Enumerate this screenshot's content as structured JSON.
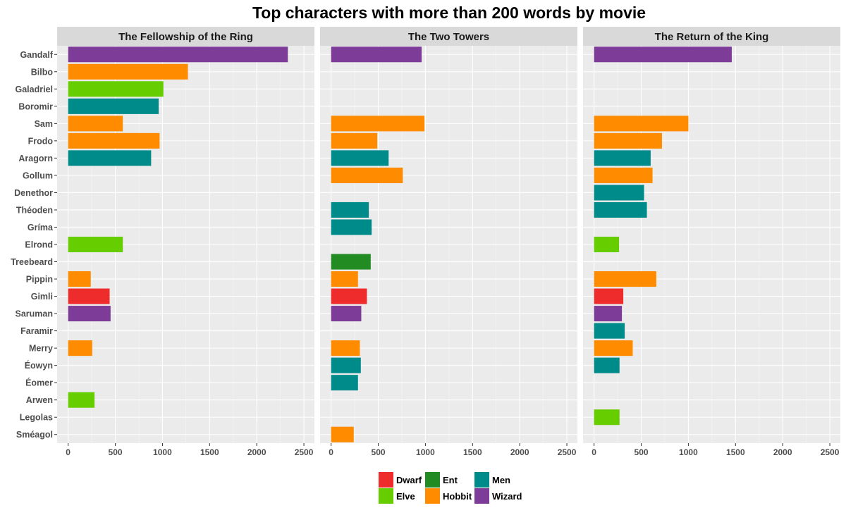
{
  "chart_data": {
    "type": "bar",
    "orientation": "horizontal",
    "title": "Top characters with more than 200 words by movie",
    "xlim": [
      0,
      2600
    ],
    "x_ticks": [
      0,
      500,
      1000,
      1500,
      2000,
      2500
    ],
    "grid": true,
    "legend_position": "bottom",
    "categories": [
      "Gandalf",
      "Bilbo",
      "Galadriel",
      "Boromir",
      "Sam",
      "Frodo",
      "Aragorn",
      "Gollum",
      "Denethor",
      "Théoden",
      "Gríma",
      "Elrond",
      "Treebeard",
      "Pippin",
      "Gimli",
      "Saruman",
      "Faramir",
      "Merry",
      "Éowyn",
      "Éomer",
      "Arwen",
      "Legolas",
      "Sméagol"
    ],
    "races": {
      "Gandalf": "Wizard",
      "Bilbo": "Hobbit",
      "Galadriel": "Elve",
      "Boromir": "Men",
      "Sam": "Hobbit",
      "Frodo": "Hobbit",
      "Aragorn": "Men",
      "Gollum": "Hobbit",
      "Denethor": "Men",
      "Théoden": "Men",
      "Gríma": "Men",
      "Elrond": "Elve",
      "Treebeard": "Ent",
      "Pippin": "Hobbit",
      "Gimli": "Dwarf",
      "Saruman": "Wizard",
      "Faramir": "Men",
      "Merry": "Hobbit",
      "Éowyn": "Men",
      "Éomer": "Men",
      "Arwen": "Elve",
      "Legolas": "Elve",
      "Sméagol": "Hobbit"
    },
    "colors": {
      "Dwarf": "#EE2C2C",
      "Elve": "#66CD00",
      "Ent": "#228B22",
      "Hobbit": "#FF8C00",
      "Men": "#008B8B",
      "Wizard": "#7D3C98"
    },
    "legend": [
      "Dwarf",
      "Elve",
      "Ent",
      "Hobbit",
      "Men",
      "Wizard"
    ],
    "panels": [
      {
        "title": "The Fellowship of the Ring",
        "values": {
          "Gandalf": 2330,
          "Bilbo": 1270,
          "Galadriel": 1010,
          "Boromir": 960,
          "Sam": 580,
          "Frodo": 970,
          "Aragorn": 880,
          "Elrond": 580,
          "Pippin": 240,
          "Gimli": 440,
          "Saruman": 450,
          "Merry": 255,
          "Arwen": 280
        }
      },
      {
        "title": "The Two Towers",
        "values": {
          "Gandalf": 960,
          "Sam": 990,
          "Frodo": 490,
          "Aragorn": 610,
          "Gollum": 760,
          "Théoden": 400,
          "Gríma": 430,
          "Treebeard": 420,
          "Pippin": 285,
          "Gimli": 380,
          "Saruman": 320,
          "Merry": 305,
          "Éowyn": 315,
          "Éomer": 285,
          "Sméagol": 240
        }
      },
      {
        "title": "The Return of the King",
        "values": {
          "Gandalf": 1460,
          "Sam": 1000,
          "Frodo": 720,
          "Aragorn": 600,
          "Gollum": 620,
          "Denethor": 530,
          "Théoden": 560,
          "Elrond": 265,
          "Pippin": 660,
          "Gimli": 310,
          "Saruman": 295,
          "Faramir": 325,
          "Merry": 410,
          "Éowyn": 270,
          "Legolas": 270
        }
      }
    ]
  }
}
